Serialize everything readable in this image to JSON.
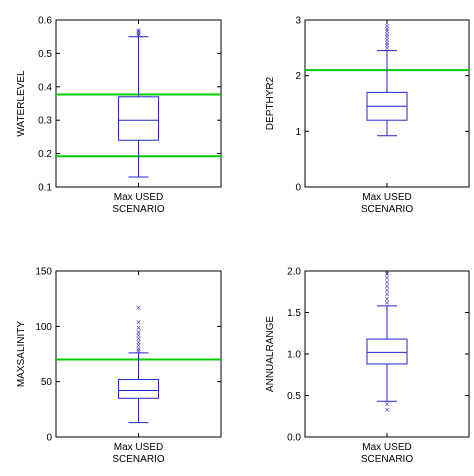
{
  "colors": {
    "box": "#2424c8",
    "threshold": "#00cc00",
    "axes": "#000000"
  },
  "chart_data": [
    {
      "type": "box",
      "ylabel": "WATERLEVEL",
      "category_lines": [
        "Max USED",
        "SCENARIO"
      ],
      "ylim": [
        0.1,
        0.6
      ],
      "yticks": [
        0.1,
        0.2,
        0.3,
        0.4,
        0.5,
        0.6
      ],
      "ytick_labels": [
        "0.1",
        "0.2",
        "0.3",
        "0.4",
        "0.5",
        "0.6"
      ],
      "box": {
        "whisker_low": 0.13,
        "q1": 0.24,
        "median": 0.3,
        "q3": 0.37,
        "whisker_high": 0.55
      },
      "outliers": [
        0.555,
        0.56,
        0.565,
        0.57
      ],
      "thresholds": [
        0.377,
        0.192
      ]
    },
    {
      "type": "box",
      "ylabel": "DEPTHYR2",
      "category_lines": [
        "Max USED",
        "SCENARIO"
      ],
      "ylim": [
        0,
        3
      ],
      "yticks": [
        0,
        1,
        2,
        3
      ],
      "ytick_labels": [
        "0",
        "1",
        "2",
        "3"
      ],
      "box": {
        "whisker_low": 0.92,
        "q1": 1.2,
        "median": 1.45,
        "q3": 1.7,
        "whisker_high": 2.45
      },
      "outliers": [
        2.5,
        2.55,
        2.6,
        2.65,
        2.7,
        2.75,
        2.8,
        2.85,
        2.9
      ],
      "thresholds": [
        2.1
      ]
    },
    {
      "type": "box",
      "ylabel": "MAXSALINITY",
      "category_lines": [
        "Max USED",
        "SCENARIO"
      ],
      "ylim": [
        0,
        150
      ],
      "yticks": [
        0,
        50,
        100,
        150
      ],
      "ytick_labels": [
        "0",
        "50",
        "100",
        "150"
      ],
      "box": {
        "whisker_low": 13,
        "q1": 35,
        "median": 42,
        "q3": 52,
        "whisker_high": 76
      },
      "outliers": [
        78,
        80,
        83,
        86,
        89,
        92,
        95,
        99,
        104,
        117
      ],
      "thresholds": [
        70
      ]
    },
    {
      "type": "box",
      "ylabel": "ANNUALRANGE",
      "category_lines": [
        "Max USED",
        "SCENARIO"
      ],
      "ylim": [
        0,
        2
      ],
      "yticks": [
        0,
        0.5,
        1,
        1.5,
        2
      ],
      "ytick_labels": [
        "0.0",
        "0.5",
        "1.0",
        "1.5",
        "2.0"
      ],
      "box": {
        "whisker_low": 0.43,
        "q1": 0.88,
        "median": 1.02,
        "q3": 1.18,
        "whisker_high": 1.58
      },
      "outliers": [
        0.33,
        0.4,
        1.62,
        1.67,
        1.72,
        1.77,
        1.82,
        1.87,
        1.92,
        1.97
      ],
      "thresholds": []
    }
  ]
}
